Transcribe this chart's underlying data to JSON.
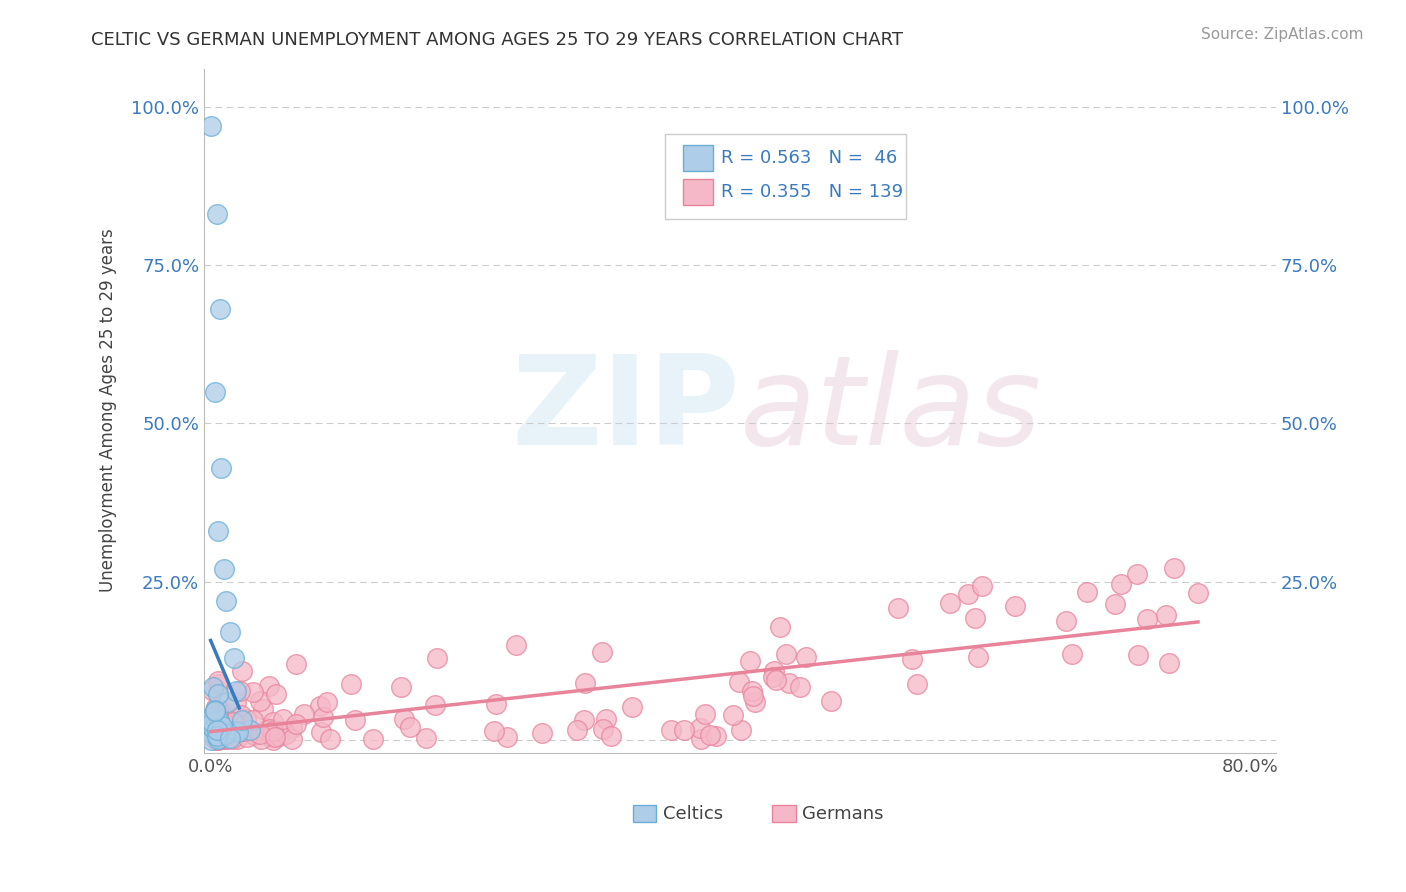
{
  "title": "CELTIC VS GERMAN UNEMPLOYMENT AMONG AGES 25 TO 29 YEARS CORRELATION CHART",
  "source": "Source: ZipAtlas.com",
  "celtics_R": 0.563,
  "celtics_N": 46,
  "germans_R": 0.355,
  "germans_N": 139,
  "celtics_color": "#aecde8",
  "celtics_edge": "#6aaed6",
  "celtics_line_color": "#3a7abf",
  "germans_color": "#f5b8c8",
  "germans_edge": "#e8849a",
  "germans_line_color": "#e8849a",
  "legend_text_color": "#3a7abf",
  "watermark_color": "#d0e8f5",
  "background_color": "#ffffff",
  "grid_color": "#cccccc"
}
